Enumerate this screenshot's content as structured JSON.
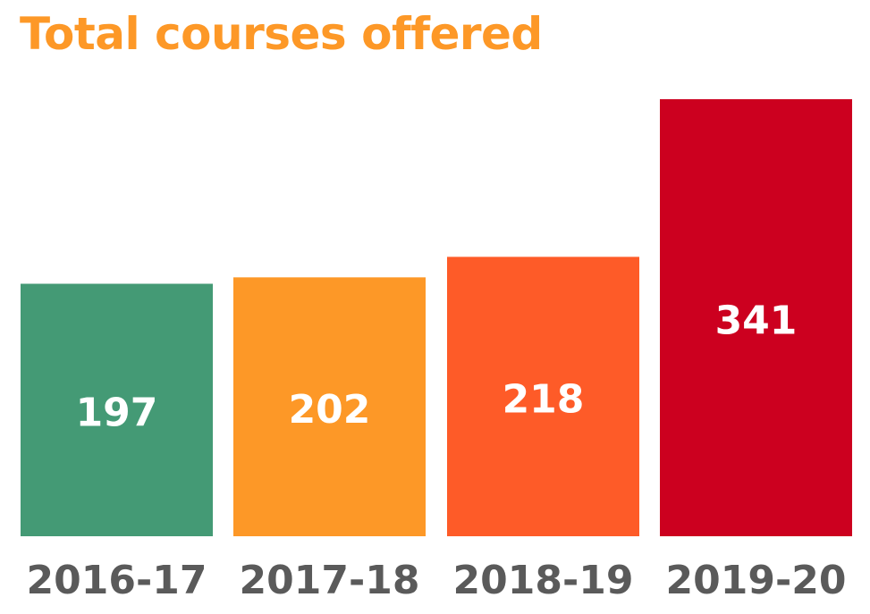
{
  "chart_data": {
    "type": "bar",
    "title": "Total courses offered",
    "categories": [
      "2016-17",
      "2017-18",
      "2018-19",
      "2019-20"
    ],
    "values": [
      197,
      202,
      218,
      341
    ],
    "bar_colors": [
      "#449a75",
      "#fd9827",
      "#fe5b28",
      "#cc001f"
    ],
    "xlabel": "",
    "ylabel": "",
    "ylim": [
      0,
      341
    ],
    "grid": false,
    "legend": "none",
    "data_labels": true
  },
  "colors": {
    "title": "#fd9827",
    "data_label": "#ffffff",
    "category_label": "#5a5a5a",
    "background": "#ffffff"
  }
}
